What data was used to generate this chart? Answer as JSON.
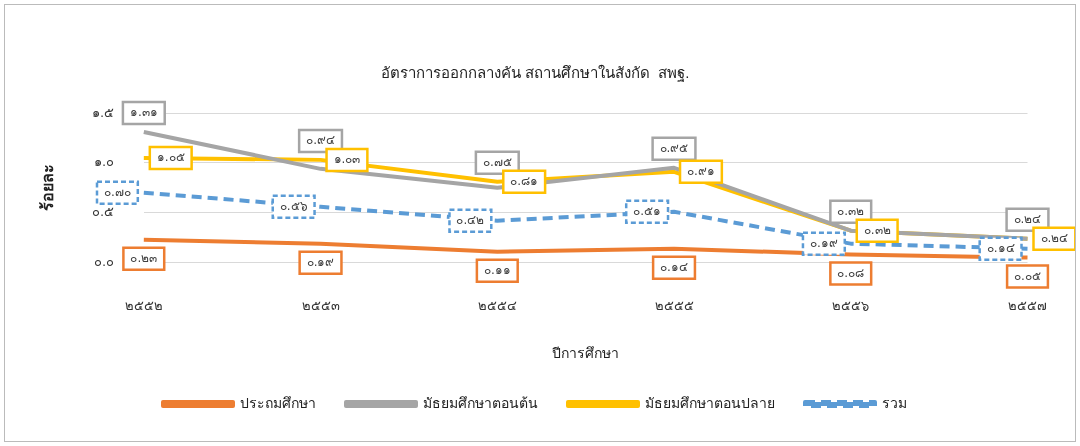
{
  "chart_data": {
    "type": "line",
    "title": "อัตราการออกกลางคัน สถานศึกษาในสังกัด  สพฐ.",
    "xlabel": "ปีการศึกษา",
    "ylabel": "ร้อยละ",
    "categories": [
      "๒๕๕๒",
      "๒๕๕๓",
      "๒๕๕๔",
      "๒๕๕๕",
      "๒๕๕๖",
      "๒๕๕๗"
    ],
    "series": [
      {
        "name": "ประถมศึกษา",
        "color": "#ed7d31",
        "values": [
          0.23,
          0.19,
          0.11,
          0.14,
          0.08,
          0.05
        ],
        "value_labels": [
          "๐.๒๓",
          "๐.๑๙",
          "๐.๑๑",
          "๐.๑๔",
          "๐.๐๘",
          "๐.๐๕"
        ],
        "line_style": "solid"
      },
      {
        "name": "มัธยมศึกษาตอนต้น",
        "color": "#a5a5a5",
        "values": [
          1.31,
          0.94,
          0.75,
          0.95,
          0.32,
          0.24
        ],
        "value_labels": [
          "๑.๓๑",
          "๐.๙๔",
          "๐.๗๕",
          "๐.๙๕",
          "๐.๓๒",
          "๐.๒๔"
        ],
        "line_style": "solid"
      },
      {
        "name": "มัธยมศึกษาตอนปลาย",
        "color": "#ffc000",
        "values": [
          1.05,
          1.03,
          0.81,
          0.91,
          0.32,
          0.24
        ],
        "value_labels": [
          "๑.๐๕",
          "๑.๐๓",
          "๐.๘๑",
          "๐.๙๑",
          "๐.๓๒",
          "๐.๒๔"
        ],
        "line_style": "solid"
      },
      {
        "name": "รวม",
        "color": "#5b9bd5",
        "values": [
          0.7,
          0.56,
          0.42,
          0.51,
          0.19,
          0.14
        ],
        "value_labels": [
          "๐.๗๐",
          "๐.๕๖",
          "๐.๔๒",
          "๐.๕๑",
          "๐.๑๙",
          "๐.๑๔"
        ],
        "line_style": "dashed"
      }
    ],
    "ylim": [
      0,
      1.5
    ],
    "yticks": [
      {
        "value": 0,
        "label": "๐.๐"
      },
      {
        "value": 0.5,
        "label": "๐.๕"
      },
      {
        "value": 1,
        "label": "๑.๐"
      },
      {
        "value": 1.5,
        "label": "๑.๕"
      }
    ],
    "grid": "y",
    "legend": "bottom",
    "marker": "none"
  }
}
